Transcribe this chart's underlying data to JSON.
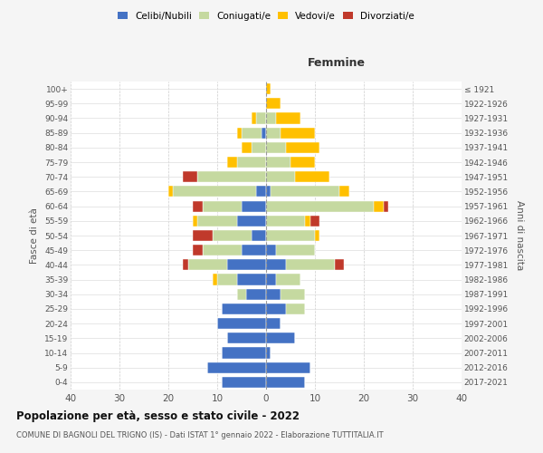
{
  "age_groups": [
    "0-4",
    "5-9",
    "10-14",
    "15-19",
    "20-24",
    "25-29",
    "30-34",
    "35-39",
    "40-44",
    "45-49",
    "50-54",
    "55-59",
    "60-64",
    "65-69",
    "70-74",
    "75-79",
    "80-84",
    "85-89",
    "90-94",
    "95-99",
    "100+"
  ],
  "birth_years": [
    "2017-2021",
    "2012-2016",
    "2007-2011",
    "2002-2006",
    "1997-2001",
    "1992-1996",
    "1987-1991",
    "1982-1986",
    "1977-1981",
    "1972-1976",
    "1967-1971",
    "1962-1966",
    "1957-1961",
    "1952-1956",
    "1947-1951",
    "1942-1946",
    "1937-1941",
    "1932-1936",
    "1927-1931",
    "1922-1926",
    "≤ 1921"
  ],
  "male": {
    "celibi": [
      9,
      12,
      9,
      8,
      10,
      9,
      4,
      6,
      8,
      5,
      3,
      6,
      5,
      2,
      0,
      0,
      0,
      1,
      0,
      0,
      0
    ],
    "coniugati": [
      0,
      0,
      0,
      0,
      0,
      0,
      2,
      4,
      8,
      8,
      8,
      8,
      8,
      17,
      14,
      6,
      3,
      4,
      2,
      0,
      0
    ],
    "vedovi": [
      0,
      0,
      0,
      0,
      0,
      0,
      0,
      1,
      0,
      0,
      0,
      1,
      0,
      1,
      0,
      2,
      2,
      1,
      1,
      0,
      0
    ],
    "divorziati": [
      0,
      0,
      0,
      0,
      0,
      0,
      0,
      0,
      1,
      2,
      4,
      0,
      2,
      0,
      3,
      0,
      0,
      0,
      0,
      0,
      0
    ]
  },
  "female": {
    "nubili": [
      8,
      9,
      1,
      6,
      3,
      4,
      3,
      2,
      4,
      2,
      0,
      0,
      0,
      1,
      0,
      0,
      0,
      0,
      0,
      0,
      0
    ],
    "coniugate": [
      0,
      0,
      0,
      0,
      0,
      4,
      5,
      5,
      10,
      8,
      10,
      8,
      22,
      14,
      6,
      5,
      4,
      3,
      2,
      0,
      0
    ],
    "vedove": [
      0,
      0,
      0,
      0,
      0,
      0,
      0,
      0,
      0,
      0,
      1,
      1,
      2,
      2,
      7,
      5,
      7,
      7,
      5,
      3,
      1
    ],
    "divorziate": [
      0,
      0,
      0,
      0,
      0,
      0,
      0,
      0,
      2,
      0,
      0,
      2,
      1,
      0,
      0,
      0,
      0,
      0,
      0,
      0,
      0
    ]
  },
  "colors": {
    "celibi_nubili": "#4472c4",
    "coniugati": "#c5d9a0",
    "vedovi": "#ffc000",
    "divorziati": "#c0392b"
  },
  "title": "Popolazione per età, sesso e stato civile - 2022",
  "subtitle": "COMUNE DI BAGNOLI DEL TRIGNO (IS) - Dati ISTAT 1° gennaio 2022 - Elaborazione TUTTITALIA.IT",
  "xlabel_right": "Femmine",
  "ylabel_left": "Fasce di età",
  "ylabel_right": "Anni di nascita",
  "xlim": 40,
  "bg_color": "#f5f5f5",
  "plot_bg": "#ffffff"
}
